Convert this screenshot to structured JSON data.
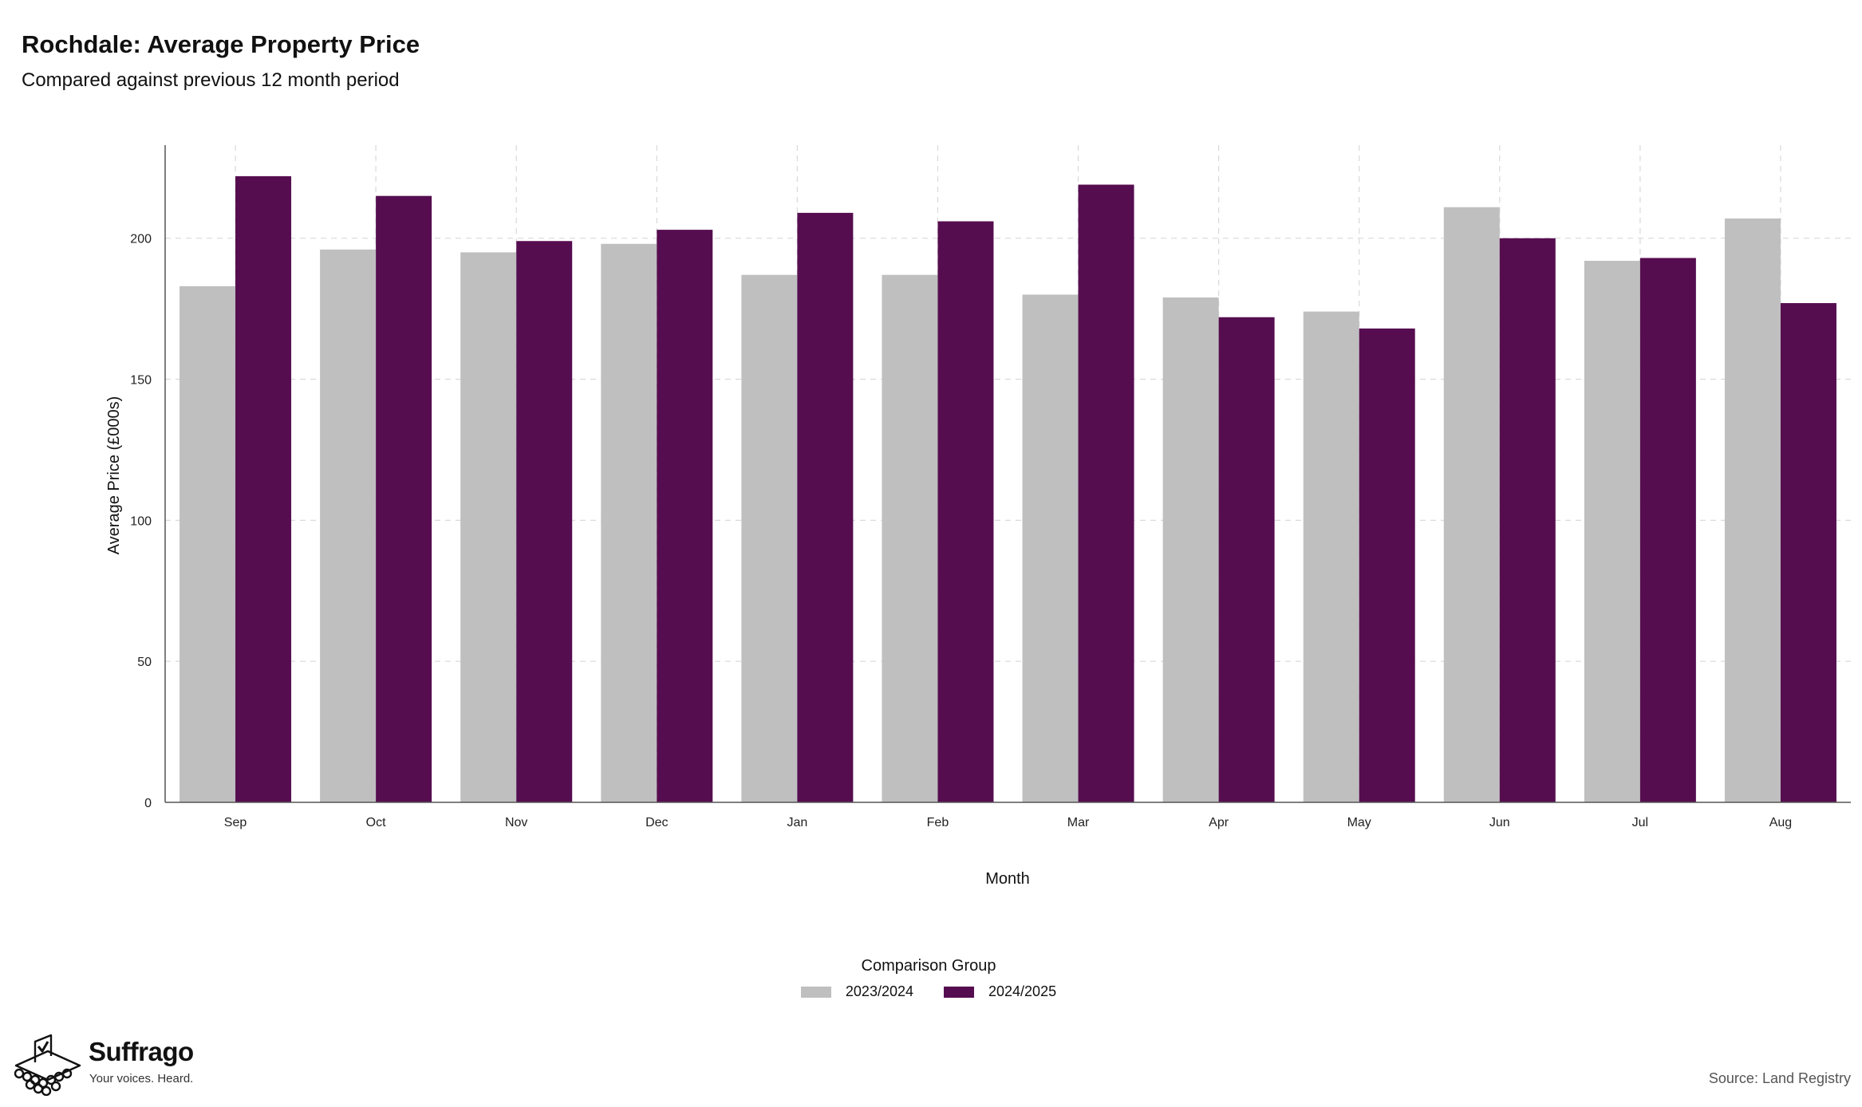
{
  "chart_data": {
    "type": "bar",
    "title": "Rochdale: Average Property Price",
    "subtitle": "Compared against previous 12 month period",
    "xlabel": "Month",
    "ylabel": "Average Price (£000s)",
    "ylim": [
      0,
      233
    ],
    "yticks": [
      0,
      50,
      100,
      150,
      200
    ],
    "grid": true,
    "legend_position": "bottom",
    "legend_title": "Comparison Group",
    "categories": [
      "Sep",
      "Oct",
      "Nov",
      "Dec",
      "Jan",
      "Feb",
      "Mar",
      "Apr",
      "May",
      "Jun",
      "Jul",
      "Aug"
    ],
    "series": [
      {
        "name": "2023/2024",
        "color": "#bfbfbf",
        "values": [
          183,
          196,
          195,
          198,
          187,
          187,
          180,
          179,
          174,
          211,
          192,
          207
        ]
      },
      {
        "name": "2024/2025",
        "color": "#560d50",
        "values": [
          222,
          215,
          199,
          203,
          209,
          206,
          219,
          172,
          168,
          200,
          193,
          177
        ]
      }
    ]
  },
  "branding": {
    "name": "Suffrago",
    "tagline": "Your voices. Heard.",
    "logo_icon": "ballot-box-icon"
  },
  "source": "Source: Land Registry"
}
